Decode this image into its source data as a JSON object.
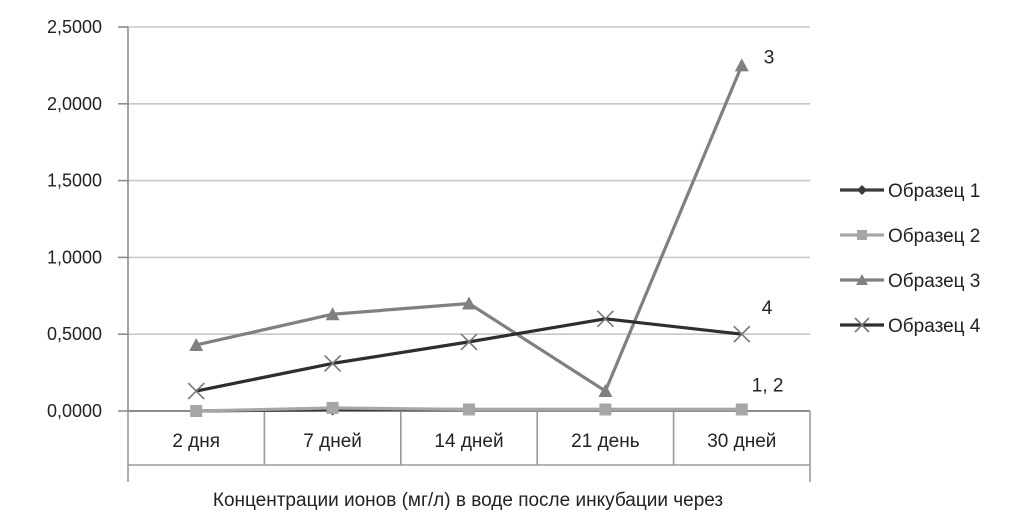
{
  "chart_data": {
    "type": "line",
    "title": "",
    "xlabel": "Концентрации ионов (мг/л) в воде после инкубации через",
    "ylabel": "",
    "categories": [
      "2 дня",
      "7 дней",
      "14 дней",
      "21 день",
      "30 дней"
    ],
    "ylim": [
      0,
      2.5
    ],
    "yticks": [
      "0,0000",
      "0,5000",
      "1,0000",
      "1,5000",
      "2,0000",
      "2,5000"
    ],
    "grid": true,
    "legend_position": "right",
    "series": [
      {
        "name": "Образец 1",
        "marker": "diamond",
        "color": "#3a3a3a",
        "values": [
          0.0,
          0.01,
          0.01,
          0.01,
          0.01
        ]
      },
      {
        "name": "Образец 2",
        "marker": "square",
        "color": "#a6a6a6",
        "values": [
          0.0,
          0.02,
          0.01,
          0.01,
          0.01
        ]
      },
      {
        "name": "Образец 3",
        "marker": "triangle",
        "color": "#808080",
        "values": [
          0.43,
          0.63,
          0.7,
          0.13,
          2.25
        ]
      },
      {
        "name": "Образец 4",
        "marker": "x",
        "color": "#2e2e2e",
        "values": [
          0.13,
          0.31,
          0.45,
          0.6,
          0.5
        ]
      }
    ],
    "annotations": [
      {
        "text": "3",
        "series": "Образец 3"
      },
      {
        "text": "4",
        "series": "Образец 4"
      },
      {
        "text": "1, 2",
        "series": "Образец 1"
      }
    ]
  }
}
